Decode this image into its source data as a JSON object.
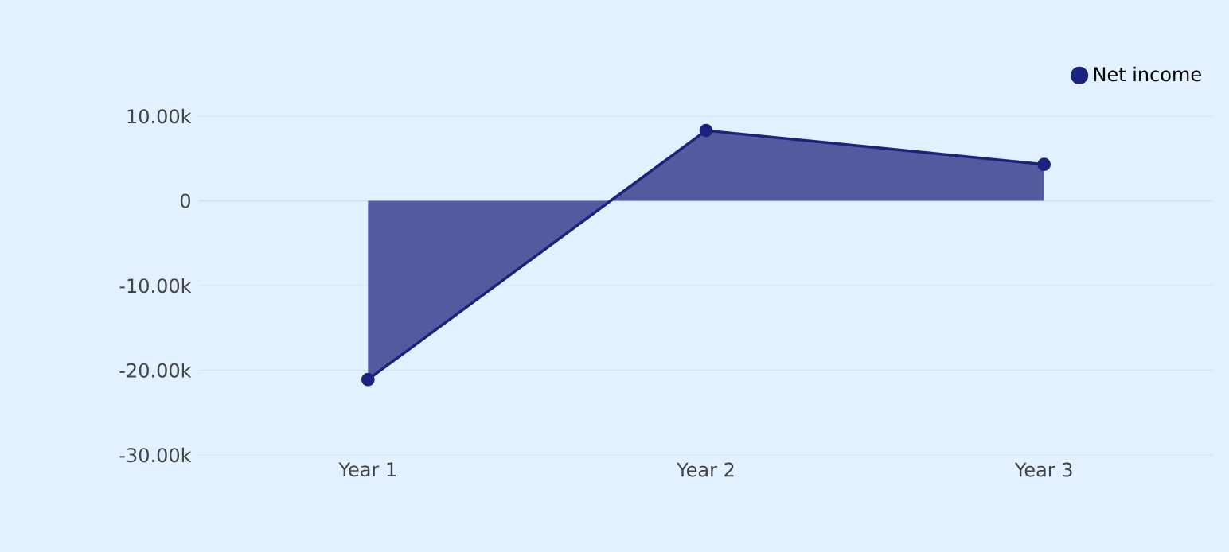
{
  "chart_data": {
    "type": "area",
    "categories": [
      "Year 1",
      "Year 2",
      "Year 3"
    ],
    "series": [
      {
        "name": "Net income",
        "color": "#1a237e",
        "values": [
          -21100,
          8300,
          4300
        ]
      }
    ],
    "ylim": [
      -30000,
      10000
    ],
    "yticks": [
      {
        "value": -30000,
        "label": "-30.00k"
      },
      {
        "value": -20000,
        "label": "-20.00k"
      },
      {
        "value": -10000,
        "label": "-10.00k"
      },
      0,
      {
        "value": 10000,
        "label": "10.00k"
      }
    ],
    "grid": "y",
    "legend": "top right",
    "marker": "circle",
    "line_style": "solid"
  }
}
